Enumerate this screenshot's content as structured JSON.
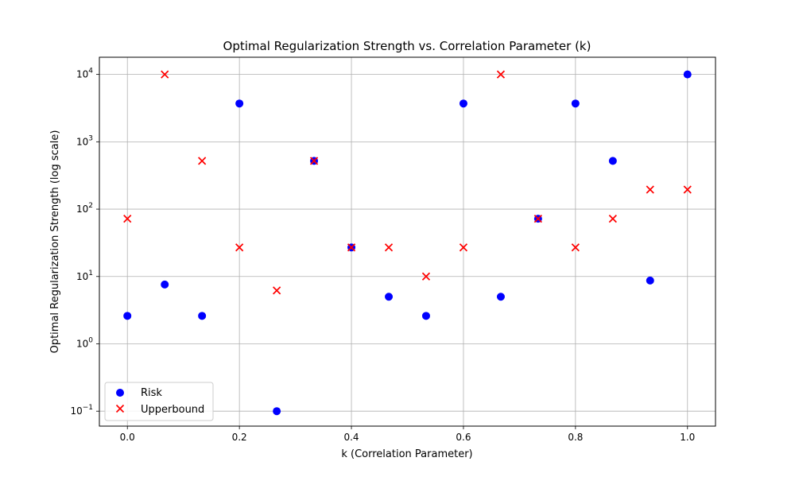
{
  "chart_data": {
    "type": "scatter",
    "title": "Optimal Regularization Strength vs. Correlation Parameter (k)",
    "xlabel": "k (Correlation Parameter)",
    "ylabel": "Optimal Regularization Strength (log scale)",
    "xlim": [
      -0.05,
      1.05
    ],
    "ylim": [
      0.06,
      18000
    ],
    "yscale": "log",
    "grid": true,
    "legend_position": "lower-left",
    "x_ticks": [
      {
        "value": 0.0,
        "label": "0.0"
      },
      {
        "value": 0.2,
        "label": "0.2"
      },
      {
        "value": 0.4,
        "label": "0.4"
      },
      {
        "value": 0.6,
        "label": "0.6"
      },
      {
        "value": 0.8,
        "label": "0.8"
      },
      {
        "value": 1.0,
        "label": "1.0"
      }
    ],
    "y_ticks": [
      {
        "value": 0.1,
        "base": "10",
        "exp": "−1"
      },
      {
        "value": 1,
        "base": "10",
        "exp": "0"
      },
      {
        "value": 10,
        "base": "10",
        "exp": "1"
      },
      {
        "value": 100,
        "base": "10",
        "exp": "2"
      },
      {
        "value": 1000,
        "base": "10",
        "exp": "3"
      },
      {
        "value": 10000,
        "base": "10",
        "exp": "4"
      }
    ],
    "series": [
      {
        "name": "Risk",
        "marker": "circle",
        "color": "#0000ff",
        "points": [
          [
            0.0,
            2.6
          ],
          [
            0.0667,
            7.6
          ],
          [
            0.1333,
            2.6
          ],
          [
            0.2,
            3700
          ],
          [
            0.2667,
            0.1
          ],
          [
            0.3333,
            520
          ],
          [
            0.4,
            27
          ],
          [
            0.4667,
            5.0
          ],
          [
            0.5333,
            2.6
          ],
          [
            0.6,
            3700
          ],
          [
            0.6667,
            5.0
          ],
          [
            0.7333,
            72
          ],
          [
            0.8,
            3700
          ],
          [
            0.8667,
            520
          ],
          [
            0.9333,
            8.7
          ],
          [
            1.0,
            10000
          ]
        ]
      },
      {
        "name": "Upperbound",
        "marker": "x",
        "color": "#ff0000",
        "points": [
          [
            0.0,
            72
          ],
          [
            0.0667,
            10000
          ],
          [
            0.1333,
            520
          ],
          [
            0.2,
            27
          ],
          [
            0.2667,
            6.2
          ],
          [
            0.3333,
            520
          ],
          [
            0.4,
            27
          ],
          [
            0.4667,
            27
          ],
          [
            0.5333,
            10
          ],
          [
            0.6,
            27
          ],
          [
            0.6667,
            10000
          ],
          [
            0.7333,
            72
          ],
          [
            0.8,
            27
          ],
          [
            0.8667,
            72
          ],
          [
            0.9333,
            195
          ],
          [
            1.0,
            195
          ]
        ]
      }
    ]
  }
}
